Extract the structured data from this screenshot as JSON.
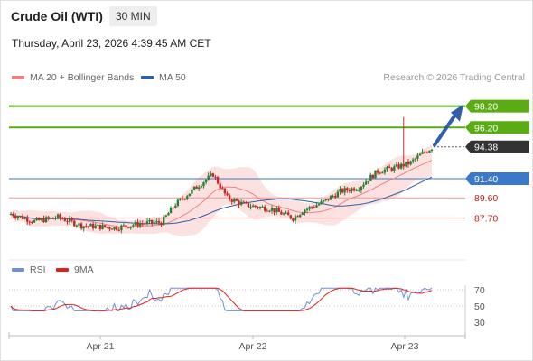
{
  "header": {
    "title": "Crude Oil (WTI)",
    "interval": "30 MIN",
    "datetime": "Thursday, April 23, 2026 4:39:45 AM CET"
  },
  "legend": {
    "ma20_label": "MA 20 + Bollinger Bands",
    "ma50_label": "MA 50",
    "source": "Research © 2026 Trading Central",
    "rsi_label": "RSI",
    "rsi_ma_label": "9MA"
  },
  "colors": {
    "up": "#2e7d32",
    "down": "#c62828",
    "resistance": "#5aab14",
    "support": "#3a78c9",
    "support_red": "#b71c1c",
    "ma20": "#f08080",
    "ma50": "#2e5fa8",
    "band_fill": "#fcdcdc",
    "current": "#333333",
    "arrow": "#2e5fa8",
    "rsi": "#6f8fd9",
    "rsi_ma": "#e0201b"
  },
  "chart_data": [
    {
      "type": "candlestick",
      "ylim": [
        84.2,
        100.2
      ],
      "x_tick_labels": [
        "Apr 21",
        "Apr 22",
        "Apr 23"
      ],
      "levels": [
        {
          "value": 98.2,
          "label": "98.20",
          "kind": "resistance"
        },
        {
          "value": 96.2,
          "label": "96.20",
          "kind": "resistance"
        },
        {
          "value": 94.38,
          "label": "94.38",
          "kind": "current"
        },
        {
          "value": 91.4,
          "label": "91.40",
          "kind": "support"
        },
        {
          "value": 89.6,
          "label": "89.60",
          "kind": "support_red"
        },
        {
          "value": 87.7,
          "label": "87.70",
          "kind": "support_red"
        }
      ],
      "arrow": {
        "from": 94.38,
        "to": 98.2
      }
    },
    {
      "type": "line",
      "series": [
        {
          "name": "RSI"
        },
        {
          "name": "9MA"
        }
      ],
      "y_tick_labels": [
        "70",
        "50",
        "30"
      ]
    }
  ]
}
